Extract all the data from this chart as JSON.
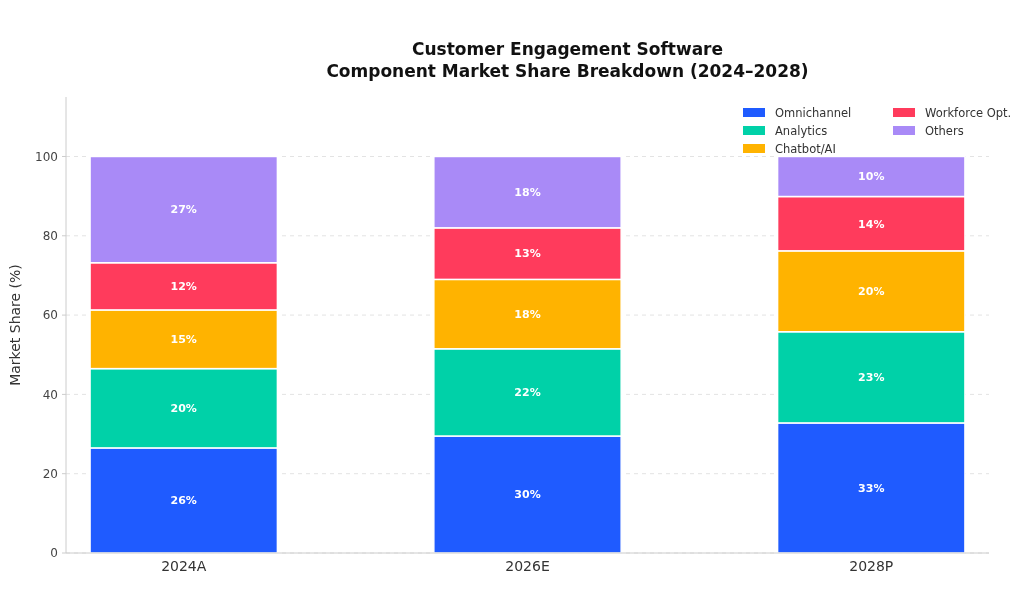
{
  "chart_data": {
    "type": "bar",
    "title": "Customer Engagement Software\nComponent Market Share Breakdown (2024–2028)",
    "ylabel": "Market Share (%)",
    "categories": [
      "2024A",
      "2026E",
      "2028P"
    ],
    "stacked": true,
    "series": [
      {
        "name": "Omnichannel",
        "color": "#1f5bff",
        "values": [
          26.5,
          29.5,
          32.8
        ],
        "value_labels": [
          "26%",
          "30%",
          "33%"
        ]
      },
      {
        "name": "Analytics",
        "color": "#00d1a8",
        "values": [
          20,
          22,
          23
        ],
        "value_labels": [
          "20%",
          "22%",
          "23%"
        ]
      },
      {
        "name": "Chatbot/AI",
        "color": "#ffb300",
        "values": [
          14.8,
          17.5,
          20.4
        ],
        "value_labels": [
          "15%",
          "18%",
          "20%"
        ]
      },
      {
        "name": "Workforce Opt.",
        "color": "#ff3b5c",
        "values": [
          11.9,
          13,
          13.7
        ],
        "value_labels": [
          "12%",
          "13%",
          "14%"
        ]
      },
      {
        "name": "Others",
        "color": "#a98af7",
        "values": [
          26.8,
          18,
          10.1
        ],
        "value_labels": [
          "27%",
          "18%",
          "10%"
        ]
      }
    ],
    "ylim": [
      0,
      115
    ],
    "yticks": [
      0,
      20,
      40,
      60,
      80,
      100
    ],
    "grid": "y",
    "legend": "top right"
  }
}
